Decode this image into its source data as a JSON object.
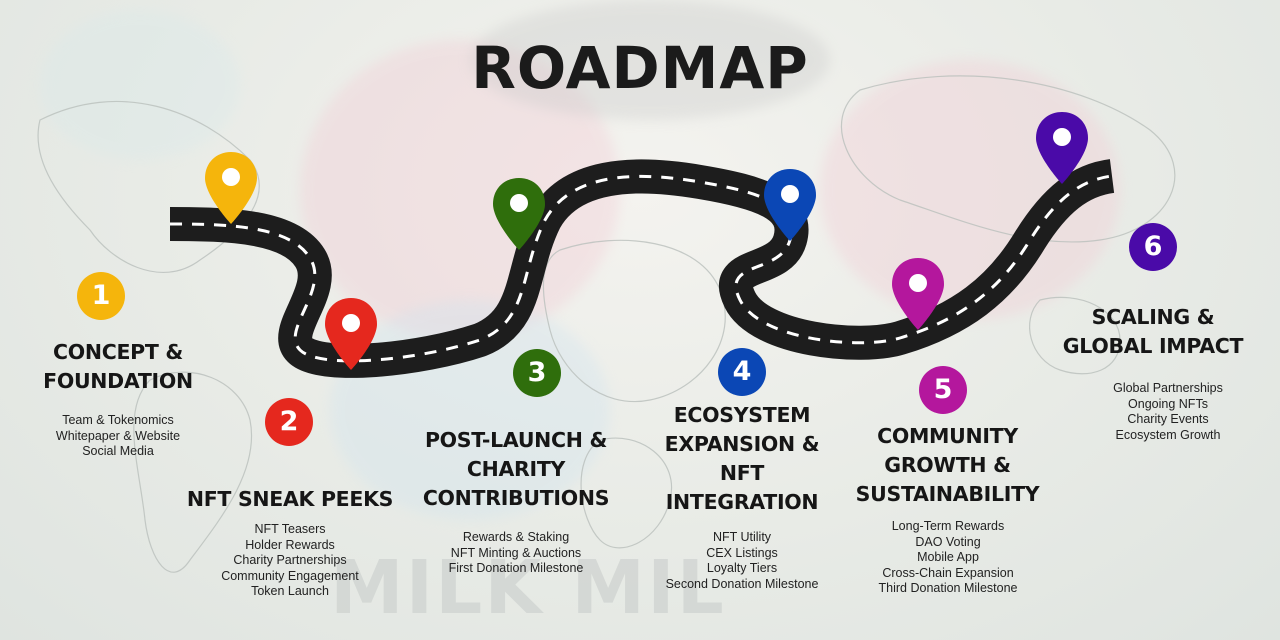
{
  "title": "ROADMAP",
  "watermark_text": "MILK MIL",
  "colors": {
    "phase1": "#f5b50c",
    "phase2": "#e5281e",
    "phase3": "#2f6e0c",
    "phase4": "#0b47b5",
    "phase5": "#b4179d",
    "phase6": "#4a0aa8",
    "road": "#1d1d1d",
    "road_dash": "#ffffff"
  },
  "phases": [
    {
      "number": "1",
      "heading": "CONCEPT &\nFOUNDATION",
      "items": [
        "Team & Tokenomics",
        "Whitepaper & Website",
        "Social Media"
      ]
    },
    {
      "number": "2",
      "heading": "NFT SNEAK PEEKS",
      "items": [
        "NFT Teasers",
        "Holder Rewards",
        "Charity Partnerships",
        "Community Engagement",
        "Token Launch"
      ]
    },
    {
      "number": "3",
      "heading": "POST-LAUNCH &\nCHARITY\nCONTRIBUTIONS",
      "items": [
        "Rewards & Staking",
        "NFT Minting & Auctions",
        "First Donation Milestone"
      ]
    },
    {
      "number": "4",
      "heading": "ECOSYSTEM\nEXPANSION &\nNFT\nINTEGRATION",
      "items": [
        "NFT Utility",
        "CEX Listings",
        "Loyalty Tiers",
        "Second Donation Milestone"
      ]
    },
    {
      "number": "5",
      "heading": "COMMUNITY\nGROWTH &\nSUSTAINABILITY",
      "items": [
        "Long-Term Rewards",
        "DAO Voting",
        "Mobile App",
        "Cross-Chain Expansion",
        "Third Donation Milestone"
      ]
    },
    {
      "number": "6",
      "heading": "SCALING &\nGLOBAL IMPACT",
      "items": [
        "Global Partnerships",
        "Ongoing NFTs",
        "Charity Events",
        "Ecosystem Growth"
      ]
    }
  ]
}
